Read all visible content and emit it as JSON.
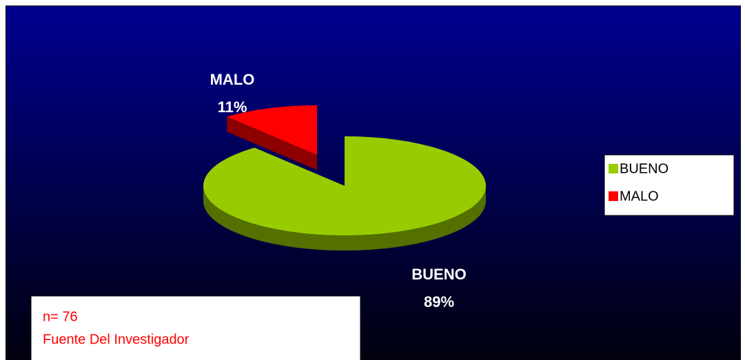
{
  "chart_data": {
    "type": "pie",
    "categories": [
      "BUENO",
      "MALO"
    ],
    "values": [
      89,
      11
    ],
    "value_labels": [
      "89%",
      "11%"
    ],
    "colors": [
      "#99cc00",
      "#ff0000"
    ],
    "exploded": [
      false,
      true
    ],
    "legend": "right",
    "annotations": [
      "n= 76",
      "Fuente Del Investigador"
    ]
  }
}
